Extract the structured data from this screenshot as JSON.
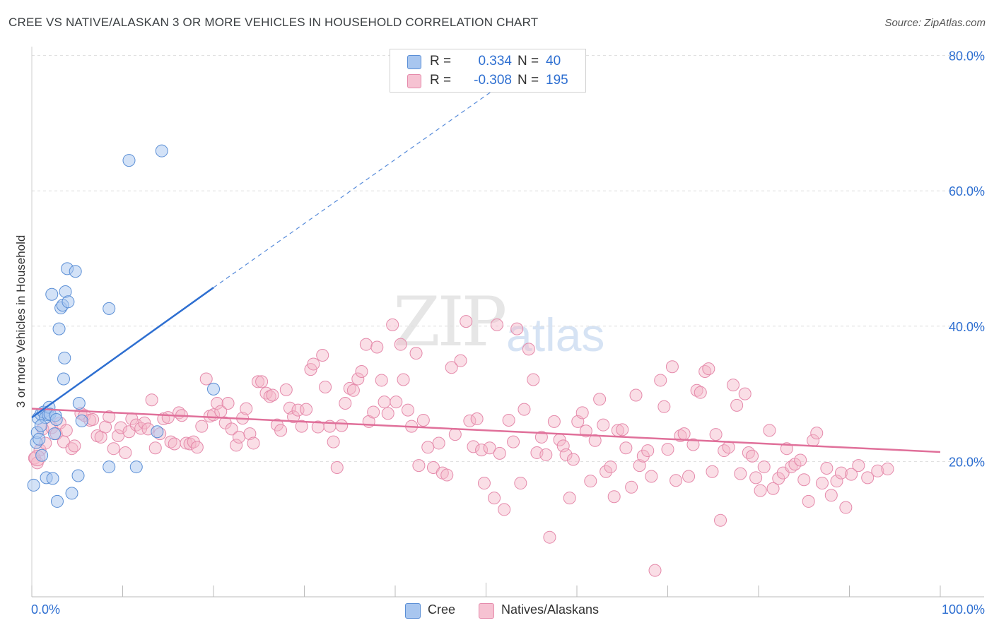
{
  "title": "CREE VS NATIVE/ALASKAN 3 OR MORE VEHICLES IN HOUSEHOLD CORRELATION CHART",
  "source": "Source: ZipAtlas.com",
  "watermark": {
    "zip": "ZIP",
    "atlas": "atlas"
  },
  "colors": {
    "cree": "#a8c6ef",
    "cree_line": "#2e6fd1",
    "natives": "#f4b6c8",
    "natives_line": "#e0709a",
    "accent": "#2e6fd1"
  },
  "stats": [
    {
      "label": "R =",
      "r": "0.334",
      "n_label": "N =",
      "n": "40",
      "color": "#a8c6ef",
      "border": "#5b8fd6"
    },
    {
      "label": "R =",
      "r": "-0.308",
      "n_label": "N =",
      "n": "195",
      "color": "#f6c2d2",
      "border": "#e58aab"
    }
  ],
  "legend": [
    {
      "name": "Cree",
      "color": "#a8c6ef",
      "border": "#5b8fd6"
    },
    {
      "name": "Natives/Alaskans",
      "color": "#f6c2d2",
      "border": "#e58aab"
    }
  ],
  "chart_data": {
    "type": "scatter",
    "title": "CREE VS NATIVE/ALASKAN 3 OR MORE VEHICLES IN HOUSEHOLD CORRELATION CHART",
    "xlabel": "",
    "ylabel": "3 or more Vehicles in Household",
    "xlim": [
      0,
      100
    ],
    "ylim": [
      0,
      82
    ],
    "x_tick_labels": [
      "0.0%",
      "100.0%"
    ],
    "y_ticks": [
      20,
      40,
      60,
      80
    ],
    "y_tick_labels": [
      "20.0%",
      "40.0%",
      "60.0%",
      "80.0%"
    ],
    "grid": true,
    "series": [
      {
        "name": "Cree",
        "r": 0.334,
        "n": 40,
        "trend": {
          "x": [
            0,
            20
          ],
          "y": [
            26.5,
            45.7
          ],
          "dashed_to": [
            52,
            76
          ]
        },
        "points": [
          [
            0.2,
            16.5
          ],
          [
            0.5,
            22.8
          ],
          [
            0.6,
            24.3
          ],
          [
            0.7,
            26.4
          ],
          [
            0.8,
            23.3
          ],
          [
            1.0,
            27.0
          ],
          [
            1.1,
            20.9
          ],
          [
            1.3,
            27.3
          ],
          [
            1.5,
            26.5
          ],
          [
            1.6,
            17.6
          ],
          [
            1.8,
            26.9
          ],
          [
            1.9,
            28.0
          ],
          [
            2.0,
            27.0
          ],
          [
            2.2,
            44.7
          ],
          [
            2.3,
            17.5
          ],
          [
            2.5,
            24.1
          ],
          [
            2.6,
            26.8
          ],
          [
            2.7,
            26.2
          ],
          [
            2.8,
            14.1
          ],
          [
            3.0,
            39.6
          ],
          [
            3.2,
            42.7
          ],
          [
            3.4,
            43.1
          ],
          [
            3.5,
            32.2
          ],
          [
            3.6,
            35.3
          ],
          [
            3.7,
            45.1
          ],
          [
            3.9,
            48.5
          ],
          [
            4.0,
            43.6
          ],
          [
            4.4,
            15.3
          ],
          [
            4.8,
            48.1
          ],
          [
            5.1,
            17.9
          ],
          [
            5.2,
            28.6
          ],
          [
            5.5,
            26.0
          ],
          [
            8.5,
            42.6
          ],
          [
            8.5,
            19.2
          ],
          [
            10.7,
            64.5
          ],
          [
            11.5,
            19.2
          ],
          [
            13.8,
            24.4
          ],
          [
            14.3,
            65.9
          ],
          [
            20.0,
            30.7
          ],
          [
            1.0,
            25.3
          ]
        ]
      },
      {
        "name": "Natives/Alaskans",
        "r": -0.308,
        "n": 195,
        "trend": {
          "x": [
            0,
            100
          ],
          "y": [
            27.8,
            21.4
          ]
        },
        "points": [
          [
            0.3,
            20.5
          ],
          [
            0.6,
            19.8
          ],
          [
            0.9,
            21.7
          ],
          [
            1.2,
            24.8
          ],
          [
            1.5,
            22.7
          ],
          [
            2.2,
            25.0
          ],
          [
            2.7,
            24.1
          ],
          [
            3.1,
            25.7
          ],
          [
            3.5,
            22.9
          ],
          [
            3.8,
            24.6
          ],
          [
            4.4,
            21.9
          ],
          [
            4.7,
            22.3
          ],
          [
            5.4,
            27.1
          ],
          [
            5.8,
            26.8
          ],
          [
            6.4,
            26.1
          ],
          [
            6.7,
            26.2
          ],
          [
            7.2,
            23.8
          ],
          [
            7.6,
            23.6
          ],
          [
            8.1,
            25.1
          ],
          [
            8.5,
            26.6
          ],
          [
            9.0,
            21.9
          ],
          [
            9.5,
            23.8
          ],
          [
            9.8,
            25.0
          ],
          [
            10.3,
            21.3
          ],
          [
            10.7,
            24.4
          ],
          [
            11.0,
            26.3
          ],
          [
            11.5,
            25.4
          ],
          [
            12.0,
            24.9
          ],
          [
            12.4,
            25.7
          ],
          [
            12.8,
            24.8
          ],
          [
            13.2,
            29.1
          ],
          [
            13.6,
            22.0
          ],
          [
            14.1,
            24.1
          ],
          [
            14.5,
            26.3
          ],
          [
            15.0,
            26.5
          ],
          [
            15.3,
            22.9
          ],
          [
            15.7,
            22.6
          ],
          [
            16.2,
            27.2
          ],
          [
            16.5,
            26.8
          ],
          [
            17.0,
            22.7
          ],
          [
            17.4,
            22.6
          ],
          [
            17.8,
            22.9
          ],
          [
            18.2,
            22.1
          ],
          [
            18.7,
            25.2
          ],
          [
            19.2,
            32.2
          ],
          [
            19.6,
            26.7
          ],
          [
            20.0,
            26.9
          ],
          [
            20.4,
            28.6
          ],
          [
            20.8,
            27.4
          ],
          [
            21.3,
            25.7
          ],
          [
            21.6,
            28.6
          ],
          [
            22.0,
            24.8
          ],
          [
            22.5,
            22.4
          ],
          [
            22.8,
            23.6
          ],
          [
            23.2,
            26.4
          ],
          [
            23.6,
            27.8
          ],
          [
            24.0,
            24.1
          ],
          [
            24.4,
            22.7
          ],
          [
            24.9,
            31.8
          ],
          [
            25.3,
            31.8
          ],
          [
            25.8,
            30.1
          ],
          [
            26.2,
            29.6
          ],
          [
            26.5,
            29.8
          ],
          [
            27.0,
            25.4
          ],
          [
            27.4,
            24.6
          ],
          [
            28.0,
            30.6
          ],
          [
            28.4,
            27.9
          ],
          [
            28.8,
            26.6
          ],
          [
            29.3,
            27.6
          ],
          [
            29.7,
            25.2
          ],
          [
            30.2,
            27.7
          ],
          [
            30.7,
            33.6
          ],
          [
            31.0,
            34.4
          ],
          [
            31.5,
            25.1
          ],
          [
            32.0,
            35.7
          ],
          [
            32.3,
            31.0
          ],
          [
            32.8,
            25.2
          ],
          [
            33.2,
            22.9
          ],
          [
            33.6,
            19.1
          ],
          [
            34.1,
            25.3
          ],
          [
            34.5,
            28.6
          ],
          [
            35.0,
            30.8
          ],
          [
            35.4,
            30.5
          ],
          [
            35.9,
            32.2
          ],
          [
            36.3,
            33.3
          ],
          [
            36.8,
            37.3
          ],
          [
            37.1,
            25.9
          ],
          [
            37.6,
            27.3
          ],
          [
            38.0,
            36.9
          ],
          [
            38.5,
            32.0
          ],
          [
            38.8,
            28.8
          ],
          [
            39.2,
            27.1
          ],
          [
            39.7,
            40.2
          ],
          [
            40.1,
            28.8
          ],
          [
            40.6,
            37.3
          ],
          [
            40.9,
            32.1
          ],
          [
            41.4,
            27.6
          ],
          [
            41.8,
            25.2
          ],
          [
            42.3,
            36.0
          ],
          [
            42.6,
            19.4
          ],
          [
            43.1,
            26.1
          ],
          [
            43.6,
            22.1
          ],
          [
            44.2,
            19.1
          ],
          [
            44.8,
            22.7
          ],
          [
            45.2,
            18.3
          ],
          [
            45.7,
            18.0
          ],
          [
            46.2,
            33.9
          ],
          [
            46.6,
            24.0
          ],
          [
            47.2,
            34.9
          ],
          [
            47.8,
            40.7
          ],
          [
            48.2,
            26.0
          ],
          [
            48.6,
            22.2
          ],
          [
            49.0,
            26.3
          ],
          [
            49.5,
            21.7
          ],
          [
            49.8,
            16.8
          ],
          [
            50.4,
            22.0
          ],
          [
            50.9,
            14.6
          ],
          [
            51.2,
            40.2
          ],
          [
            51.5,
            21.2
          ],
          [
            52.0,
            12.9
          ],
          [
            52.5,
            26.1
          ],
          [
            53.0,
            22.9
          ],
          [
            53.4,
            39.6
          ],
          [
            53.8,
            16.8
          ],
          [
            54.2,
            27.7
          ],
          [
            54.7,
            36.6
          ],
          [
            55.2,
            32.1
          ],
          [
            55.6,
            21.3
          ],
          [
            56.1,
            23.6
          ],
          [
            56.6,
            21.0
          ],
          [
            57.0,
            8.8
          ],
          [
            57.5,
            25.9
          ],
          [
            58.1,
            23.2
          ],
          [
            58.5,
            22.3
          ],
          [
            58.8,
            21.0
          ],
          [
            59.2,
            14.6
          ],
          [
            59.6,
            20.3
          ],
          [
            60.1,
            25.9
          ],
          [
            60.6,
            27.2
          ],
          [
            61.0,
            24.5
          ],
          [
            61.5,
            17.1
          ],
          [
            62.0,
            23.1
          ],
          [
            62.5,
            29.2
          ],
          [
            62.9,
            25.4
          ],
          [
            63.2,
            18.5
          ],
          [
            63.7,
            19.2
          ],
          [
            64.1,
            14.8
          ],
          [
            64.5,
            24.6
          ],
          [
            65.0,
            24.7
          ],
          [
            65.4,
            22.0
          ],
          [
            66.0,
            16.2
          ],
          [
            66.5,
            29.8
          ],
          [
            66.9,
            19.4
          ],
          [
            67.3,
            20.8
          ],
          [
            67.8,
            21.6
          ],
          [
            68.2,
            17.8
          ],
          [
            68.6,
            3.9
          ],
          [
            69.2,
            32.0
          ],
          [
            69.6,
            28.1
          ],
          [
            70.0,
            21.8
          ],
          [
            70.5,
            34.0
          ],
          [
            70.9,
            17.2
          ],
          [
            71.4,
            23.8
          ],
          [
            71.8,
            24.1
          ],
          [
            72.3,
            17.8
          ],
          [
            72.8,
            22.5
          ],
          [
            73.2,
            30.5
          ],
          [
            73.6,
            30.2
          ],
          [
            74.1,
            33.3
          ],
          [
            74.5,
            33.7
          ],
          [
            74.9,
            18.5
          ],
          [
            75.3,
            24.0
          ],
          [
            75.8,
            11.3
          ],
          [
            76.2,
            21.6
          ],
          [
            76.7,
            22.1
          ],
          [
            77.2,
            31.3
          ],
          [
            77.6,
            28.3
          ],
          [
            78.0,
            18.2
          ],
          [
            78.5,
            30.0
          ],
          [
            78.9,
            21.3
          ],
          [
            79.3,
            20.8
          ],
          [
            79.7,
            17.6
          ],
          [
            80.2,
            15.7
          ],
          [
            80.6,
            19.2
          ],
          [
            81.2,
            24.6
          ],
          [
            81.6,
            16.0
          ],
          [
            82.2,
            17.5
          ],
          [
            82.7,
            18.3
          ],
          [
            83.1,
            21.9
          ],
          [
            83.6,
            19.2
          ],
          [
            84.0,
            19.6
          ],
          [
            84.6,
            20.2
          ],
          [
            85.0,
            17.3
          ],
          [
            85.5,
            14.1
          ],
          [
            86.0,
            23.1
          ],
          [
            86.4,
            24.2
          ],
          [
            87.0,
            16.8
          ],
          [
            87.5,
            19.0
          ],
          [
            88.0,
            15.0
          ],
          [
            88.6,
            17.1
          ],
          [
            89.1,
            18.3
          ],
          [
            89.6,
            13.2
          ],
          [
            90.2,
            18.1
          ],
          [
            91.0,
            19.4
          ],
          [
            92.0,
            17.6
          ],
          [
            93.1,
            18.6
          ],
          [
            94.2,
            18.9
          ]
        ]
      }
    ]
  }
}
